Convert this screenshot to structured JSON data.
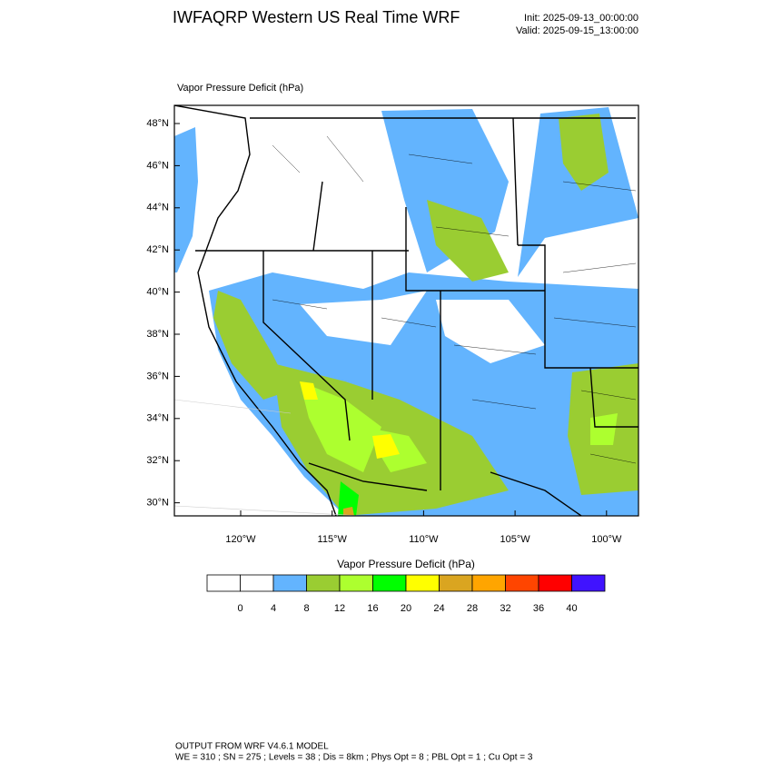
{
  "header": {
    "title": "IWFAQRP Western US Real Time WRF",
    "init": "Init: 2025-09-13_00:00:00",
    "valid": "Valid: 2025-09-15_13:00:00"
  },
  "map": {
    "field_label": "Vapor Pressure Deficit   (hPa)",
    "lat_labels": [
      "48°N",
      "46°N",
      "44°N",
      "42°N",
      "40°N",
      "38°N",
      "36°N",
      "34°N",
      "32°N",
      "30°N"
    ],
    "lon_labels": [
      "120°W",
      "115°W",
      "110°W",
      "105°W",
      "100°W"
    ]
  },
  "colorbar": {
    "title": "Vapor Pressure Deficit  (hPa)",
    "colors": [
      "#ffffff",
      "#ffffff",
      "#63b4fe",
      "#9acd32",
      "#adff2f",
      "#00ff00",
      "#ffff00",
      "#daa520",
      "#ffa500",
      "#ff4500",
      "#ff0000",
      "#4013ff"
    ],
    "labels": [
      0,
      4,
      8,
      12,
      16,
      20,
      24,
      28,
      32,
      36,
      40
    ]
  },
  "footer": {
    "line1": "OUTPUT FROM WRF V4.6.1 MODEL",
    "line2": "WE = 310 ; SN = 275 ; Levels = 38 ; Dis = 8km ; Phys Opt = 8 ; PBL Opt = 1 ; Cu Opt = 3"
  }
}
